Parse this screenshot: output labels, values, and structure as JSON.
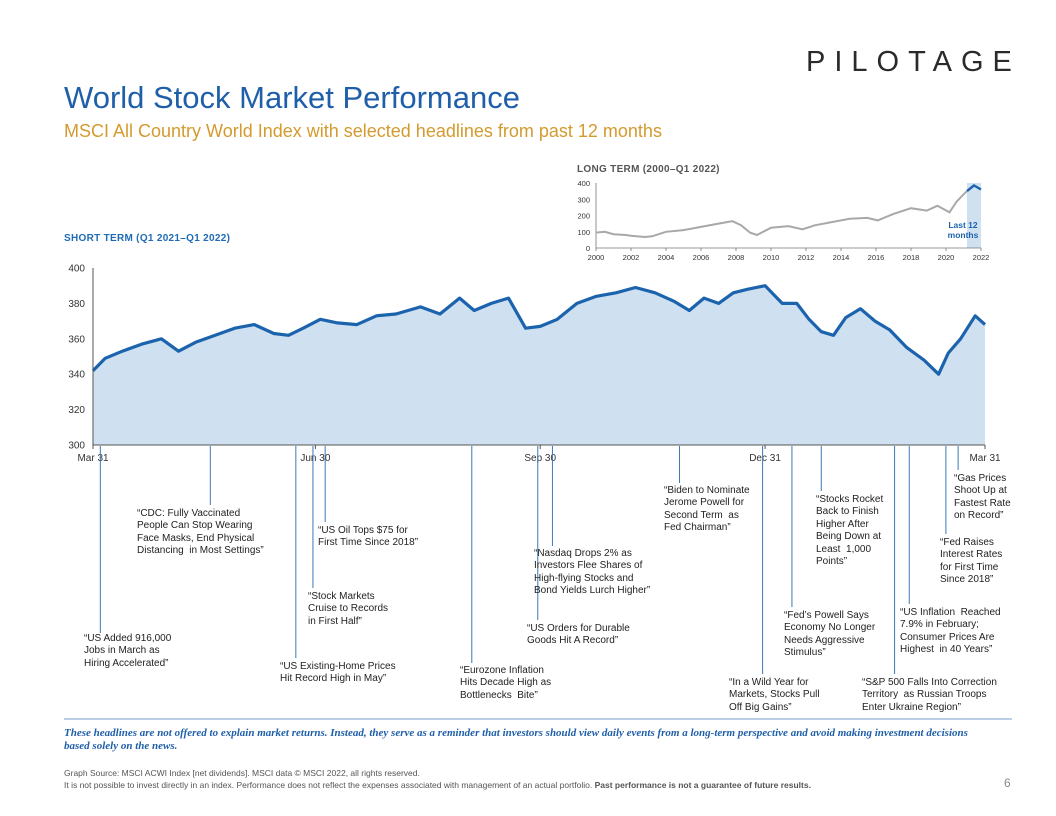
{
  "logo_text": "PILOTAGE",
  "title": "World Stock Market Performance",
  "subtitle": "MSCI All Country World Index with selected headlines from past 12 months",
  "long_term_label": "LONG TERM (2000–Q1 2022)",
  "short_term_label": "SHORT TERM (Q1 2021–Q1 2022)",
  "inset_annotation": [
    "Last 12",
    "months"
  ],
  "chart_data": [
    {
      "type": "area",
      "y_ticks": [
        "400",
        "380",
        "360",
        "340",
        "320",
        "300"
      ],
      "ylim": [
        300,
        400
      ],
      "x_tick_labels": [
        "Mar 31",
        "Jun 30",
        "Sep 30",
        "Dec 31",
        "Mar 31"
      ],
      "x_tick_days": [
        0,
        91,
        183,
        275,
        365
      ],
      "x_day": [
        0,
        5,
        12,
        20,
        28,
        35,
        42,
        50,
        58,
        66,
        74,
        80,
        86,
        93,
        100,
        108,
        116,
        124,
        134,
        142,
        150,
        156,
        163,
        170,
        177,
        183,
        190,
        198,
        206,
        214,
        222,
        230,
        238,
        244,
        250,
        256,
        262,
        268,
        275,
        282,
        288,
        293,
        298,
        303,
        308,
        314,
        320,
        326,
        333,
        340,
        346,
        350,
        355,
        361,
        365
      ],
      "values": [
        342,
        349,
        353,
        357,
        360,
        353,
        358,
        362,
        366,
        368,
        363,
        362,
        366,
        371,
        369,
        368,
        373,
        374,
        378,
        374,
        383,
        376,
        380,
        383,
        366,
        367,
        371,
        380,
        384,
        386,
        389,
        386,
        381,
        376,
        383,
        380,
        386,
        388,
        390,
        380,
        380,
        371,
        364,
        362,
        372,
        377,
        370,
        365,
        355,
        348,
        340,
        352,
        360,
        373,
        368
      ]
    },
    {
      "type": "line",
      "x_tick_labels": [
        "2000",
        "2002",
        "2004",
        "2006",
        "2008",
        "2010",
        "2012",
        "2014",
        "2016",
        "2018",
        "2020",
        "2022"
      ],
      "y_ticks": [
        "400",
        "300",
        "200",
        "100",
        "0"
      ],
      "xlim": [
        2000,
        2022
      ],
      "ylim": [
        0,
        400
      ],
      "x": [
        2000,
        2000.5,
        2001,
        2001.7,
        2002,
        2002.8,
        2003.2,
        2004,
        2005,
        2006,
        2007,
        2007.8,
        2008.3,
        2008.8,
        2009.2,
        2010,
        2011,
        2011.8,
        2012.5,
        2013.5,
        2014.5,
        2015.5,
        2016.1,
        2017,
        2018,
        2018.9,
        2019.5,
        2020.2,
        2020.6,
        2021,
        2021.2,
        2021.6,
        2022
      ],
      "values": [
        95,
        100,
        85,
        80,
        75,
        68,
        72,
        100,
        110,
        130,
        150,
        165,
        140,
        95,
        80,
        125,
        135,
        115,
        140,
        160,
        180,
        185,
        170,
        210,
        245,
        230,
        260,
        220,
        285,
        330,
        350,
        385,
        360
      ]
    }
  ],
  "headlines": [
    {
      "day": 3,
      "lines": [
        "“US Added 916,000",
        "Jobs in March as",
        "Hiring Accelerated”"
      ]
    },
    {
      "day": 48,
      "lines": [
        "“CDC: Fully Vaccinated",
        "People Can Stop Wearing",
        "Face Masks, End Physical",
        "Distancing  in Most Settings”"
      ]
    },
    {
      "day": 83,
      "lines": [
        "“US Existing-Home Prices",
        "Hit Record High in May”"
      ]
    },
    {
      "day": 90,
      "lines": [
        "“Stock Markets",
        "Cruise to Records",
        "in First Half”"
      ]
    },
    {
      "day": 95,
      "lines": [
        "“US Oil Tops $75 for",
        "First Time Since 2018”"
      ]
    },
    {
      "day": 155,
      "lines": [
        "“Eurozone Inflation",
        "Hits Decade High as",
        "Bottlenecks  Bite”"
      ]
    },
    {
      "day": 182,
      "lines": [
        "“US Orders for Durable",
        "Goods Hit A Record”"
      ]
    },
    {
      "day": 188,
      "lines": [
        "“Nasdaq Drops 2% as",
        "Investors Flee Shares of",
        "High-flying Stocks and",
        "Bond Yields Lurch Higher”"
      ]
    },
    {
      "day": 240,
      "lines": [
        "“Biden to Nominate",
        "Jerome Powell for",
        "Second Term  as",
        "Fed Chairman”"
      ]
    },
    {
      "day": 274,
      "lines": [
        "“In a Wild Year for",
        "Markets, Stocks Pull",
        "Off Big Gains”"
      ]
    },
    {
      "day": 286,
      "lines": [
        "“Fed’s Powell Says",
        "Economy No Longer",
        "Needs Aggressive",
        "Stimulus”"
      ]
    },
    {
      "day": 298,
      "lines": [
        "“Stocks Rocket",
        "Back to Finish",
        "Higher After",
        "Being Down at",
        "Least  1,000",
        "Points”"
      ]
    },
    {
      "day": 328,
      "lines": [
        "“S&P 500 Falls Into Correction",
        "Territory  as Russian Troops",
        "Enter Ukraine Region”"
      ]
    },
    {
      "day": 334,
      "lines": [
        "“US Inflation  Reached",
        "7.9% in February;",
        "Consumer Prices Are",
        "Highest  in 40 Years”"
      ]
    },
    {
      "day": 349,
      "lines": [
        "“Fed Raises",
        "Interest Rates",
        "for First Time",
        "Since 2018”"
      ]
    },
    {
      "day": 354,
      "lines": [
        "“Gas Prices",
        "Shoot Up at",
        "Fastest Rate",
        "on Record”"
      ]
    }
  ],
  "disclaimer": "These headlines are not offered to explain market returns.  Instead, they serve  as a reminder that investors should view daily events  from a long-term perspective  and avoid making investment decisions based solely on the news.",
  "source_line1": "Graph Source: MSCI ACWI Index [net dividends]. MSCI data © MSCI 2022, all rights reserved.",
  "source_line2_normal": "It is not possible to invest directly in an index. Performance does not reflect the expenses associated with management of an actual portfolio. ",
  "source_line2_bold": "Past performance is not a guarantee of future results.",
  "page_number": "6",
  "colors": {
    "title": "#1f5fa9",
    "subtitle": "#d49a2e",
    "line": "#1c63ad",
    "fill": "#cfe0f1",
    "leader": "#3a78b8"
  }
}
